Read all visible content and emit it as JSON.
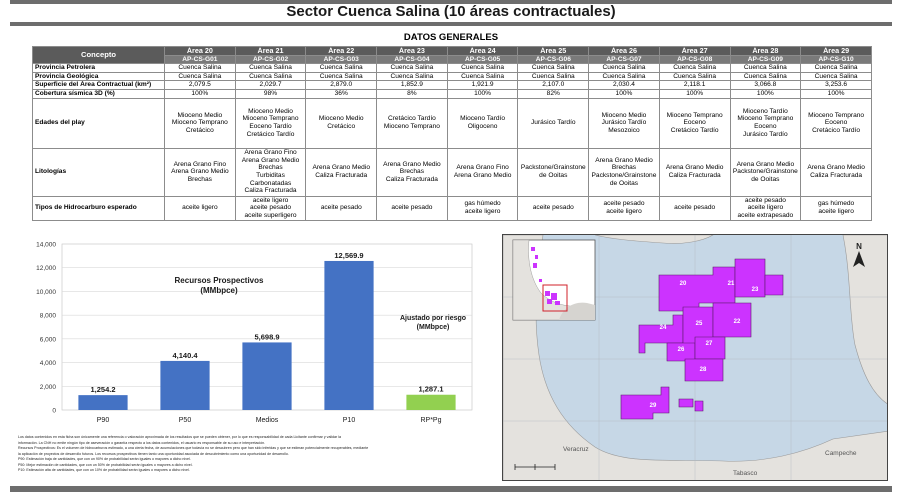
{
  "header": {
    "title": "Sector Cuenca Salina (10 áreas contractuales)",
    "subtitle": "DATOS GENERALES"
  },
  "table": {
    "concept_header": "Concepto",
    "areas": [
      "Área 20",
      "Área 21",
      "Área 22",
      "Área 23",
      "Área 24",
      "Área 25",
      "Área 26",
      "Área 27",
      "Área 28",
      "Área 29"
    ],
    "codes": [
      "AP-CS-G01",
      "AP-CS-G02",
      "AP-CS-G03",
      "AP-CS-G04",
      "AP-CS-G05",
      "AP-CS-G06",
      "AP-CS-G07",
      "AP-CS-G08",
      "AP-CS-G09",
      "AP-CS-G10"
    ],
    "rows": [
      {
        "label": "Provincia Petrolera",
        "cells": [
          "Cuenca Salina",
          "Cuenca Salina",
          "Cuenca Salina",
          "Cuenca Salina",
          "Cuenca Salina",
          "Cuenca Salina",
          "Cuenca Salina",
          "Cuenca Salina",
          "Cuenca Salina",
          "Cuenca Salina"
        ]
      },
      {
        "label": "Provincia Geológica",
        "cells": [
          "Cuenca Salina",
          "Cuenca Salina",
          "Cuenca Salina",
          "Cuenca Salina",
          "Cuenca Salina",
          "Cuenca Salina",
          "Cuenca Salina",
          "Cuenca Salina",
          "Cuenca Salina",
          "Cuenca Salina"
        ]
      },
      {
        "label": "Superficie del Área Contractual (km²)",
        "cells": [
          "2,079.5",
          "2,029.7",
          "2,879.0",
          "1,852.9",
          "1,921.9",
          "2,107.0",
          "2,030.4",
          "2,118.1",
          "3,066.8",
          "3,253.6"
        ]
      },
      {
        "label": "Cobertura sísmica 3D (%)",
        "cells": [
          "100%",
          "98%",
          "36%",
          "8%",
          "100%",
          "82%",
          "100%",
          "100%",
          "100%",
          "100%"
        ]
      },
      {
        "label": "Edades del play",
        "cells": [
          "Mioceno Medio\nMioceno Temprano\nCretácico",
          "Mioceno Medio\nMioceno Temprano\nEoceno Tardío\nCretácico Tardío",
          "Mioceno Medio\nCretácico",
          "Cretácico Tardío\nMioceno Temprano",
          "Mioceno Tardío\nOligoceno",
          "Jurásico Tardío",
          "Mioceno Medio\nJurásico Tardío\nMesozoico",
          "Mioceno Temprano\nEoceno\nCretácico Tardío",
          "Mioceno Tardío\nMioceno Temprano\nEoceno\nJurásico Tardío",
          "Mioceno Temprano\nEoceno\nCretácico Tardío"
        ]
      },
      {
        "label": "Litologías",
        "cells": [
          "Arena Grano Fino\nArena Grano Medio\nBrechas",
          "Arena Grano Fino\nArena Grano Medio\nBrechas\nTurbiditas\nCarbonatadas\nCaliza Fracturada",
          "Arena Grano Medio\nCaliza Fracturada",
          "Arena Grano Medio\nBrechas\nCaliza Fracturada",
          "Arena Grano Fino\nArena Grano Medio",
          "Packstone/Grainstone\nde Ooitas",
          "Arena Grano Medio\nBrechas\nPackstone/Grainstone\nde Ooitas",
          "Arena Grano Medio\nCaliza Fracturada",
          "Arena Grano Medio\nPackstone/Grainstone\nde Ooitas",
          "Arena Grano Medio\nCaliza Fracturada"
        ]
      },
      {
        "label": "Tipos de Hidrocarburo esperado",
        "cells": [
          "aceite ligero",
          "aceite ligero\naceite pesado\naceite superligero",
          "aceite pesado",
          "aceite pesado",
          "gas húmedo\naceite ligero",
          "aceite pesado",
          "aceite pesado\naceite ligero",
          "aceite pesado",
          "aceite pesado\naceite ligero\naceite extrapesado",
          "gas húmedo\naceite ligero"
        ]
      }
    ]
  },
  "chart_data": {
    "type": "bar",
    "title": "Recursos Prospectivos (MMbpce)",
    "title_lines": [
      "Recursos Prospectivos",
      "(MMbpce)"
    ],
    "risk_label": "Ajustado por riesgo",
    "risk_unit": "(MMbpce)",
    "categories": [
      "P90",
      "P50",
      "Medios",
      "P10",
      "RP*Pg"
    ],
    "values": [
      1254.2,
      4140.4,
      5698.9,
      12569.9,
      1287.1
    ],
    "value_labels": [
      "1,254.2",
      "4,140.4",
      "5,698.9",
      "12,569.9",
      "1,287.1"
    ],
    "colors": [
      "#4472c4",
      "#4472c4",
      "#4472c4",
      "#4472c4",
      "#92d050"
    ],
    "ylim": [
      0,
      14000
    ],
    "yticks": [
      0,
      2000,
      4000,
      6000,
      8000,
      10000,
      12000,
      14000
    ],
    "ytick_labels": [
      "0",
      "2,000",
      "4,000",
      "6,000",
      "8,000",
      "10,000",
      "12,000",
      "14,000"
    ],
    "grid": true
  },
  "notes": [
    "Los datos contenidos en esta ficha son únicamente una referencia o valoración aproximada de los resultados que se pueden obtener, por lo que es responsabilidad de cada Licitante confirmar y validar la",
    "información. La CNH no emite ningún tipo de aseveración o garantía respecto a los datos contenidos, el usuario es responsable de su uso e interpretación.",
    "Recursos Prospectivos: Es el volumen de hidrocarburos estimado, a una cierta fecha, de acumulaciones que todavía no se descubren pero que han sido inferidas y que se estiman potencialmente recuperables, mediante",
    "la aplicación de proyectos de desarrollo futuros. Los recursos prospectivos tienen tanto una oportunidad asociada de descubrimiento como una oportunidad de desarrollo.",
    "P90: Estimación baja de cantidades, que con un 90% de probabilidad serán iguales o mayores a dicho nivel.",
    "P50: Mejor estimación de cantidades, que con un 50% de probabilidad serán iguales o mayores a dicho nivel.",
    "P10: Estimación alta de cantidades, que con un 10% de probabilidad serán iguales o mayores a dicho nivel."
  ],
  "map": {
    "area_labels": [
      "20",
      "21",
      "22",
      "23",
      "24",
      "25",
      "26",
      "27",
      "28",
      "29"
    ],
    "place_labels": [
      "Veracruz",
      "Tabasco",
      "Campeche"
    ],
    "north_label": "N",
    "polygon_color": "#cc33ff",
    "sea_color": "#c6d7e6",
    "land_color": "#e4e2de"
  }
}
